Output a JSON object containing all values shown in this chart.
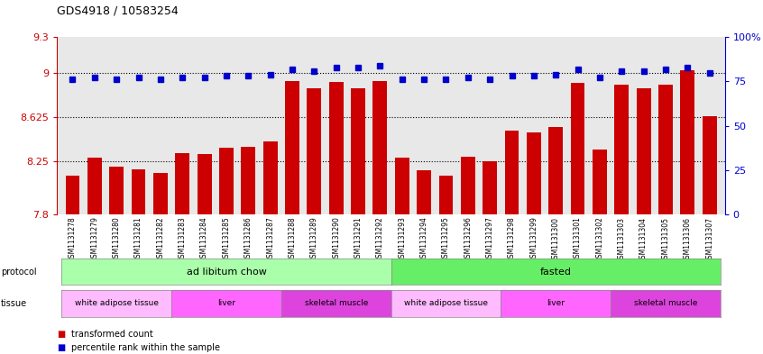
{
  "title": "GDS4918 / 10583254",
  "samples": [
    "GSM1131278",
    "GSM1131279",
    "GSM1131280",
    "GSM1131281",
    "GSM1131282",
    "GSM1131283",
    "GSM1131284",
    "GSM1131285",
    "GSM1131286",
    "GSM1131287",
    "GSM1131288",
    "GSM1131289",
    "GSM1131290",
    "GSM1131291",
    "GSM1131292",
    "GSM1131293",
    "GSM1131294",
    "GSM1131295",
    "GSM1131296",
    "GSM1131297",
    "GSM1131298",
    "GSM1131299",
    "GSM1131300",
    "GSM1131301",
    "GSM1131302",
    "GSM1131303",
    "GSM1131304",
    "GSM1131305",
    "GSM1131306",
    "GSM1131307"
  ],
  "bar_values": [
    8.13,
    8.28,
    8.2,
    8.18,
    8.15,
    8.32,
    8.31,
    8.36,
    8.37,
    8.42,
    8.93,
    8.87,
    8.92,
    8.87,
    8.93,
    8.28,
    8.17,
    8.13,
    8.29,
    8.25,
    8.51,
    8.49,
    8.54,
    8.91,
    8.35,
    8.9,
    8.87,
    8.9,
    9.02,
    8.63
  ],
  "percentile_values": [
    76,
    77,
    76,
    77,
    76,
    77,
    77,
    78,
    78,
    79,
    82,
    81,
    83,
    83,
    84,
    76,
    76,
    76,
    77,
    76,
    78,
    78,
    79,
    82,
    77,
    81,
    81,
    82,
    83,
    80
  ],
  "bar_color": "#cc0000",
  "dot_color": "#0000cc",
  "plot_bg_color": "#e8e8e8",
  "ylim_left": [
    7.8,
    9.3
  ],
  "ylim_right": [
    0,
    100
  ],
  "yticks_left": [
    7.8,
    8.25,
    8.625,
    9.0,
    9.3
  ],
  "ytick_labels_left": [
    "7.8",
    "8.25",
    "8.625",
    "9",
    "9.3"
  ],
  "yticks_right": [
    0,
    25,
    50,
    75,
    100
  ],
  "ytick_labels_right": [
    "0",
    "25",
    "50",
    "75",
    "100%"
  ],
  "hlines": [
    9.0,
    8.625,
    8.25
  ],
  "protocol_groups": [
    {
      "label": "ad libitum chow",
      "start": 0,
      "end": 14,
      "color": "#aaffaa"
    },
    {
      "label": "fasted",
      "start": 15,
      "end": 29,
      "color": "#66ee66"
    }
  ],
  "tissue_groups": [
    {
      "label": "white adipose tissue",
      "start": 0,
      "end": 4,
      "color": "#ffbbff"
    },
    {
      "label": "liver",
      "start": 5,
      "end": 9,
      "color": "#ff66ff"
    },
    {
      "label": "skeletal muscle",
      "start": 10,
      "end": 14,
      "color": "#dd44dd"
    },
    {
      "label": "white adipose tissue",
      "start": 15,
      "end": 19,
      "color": "#ffbbff"
    },
    {
      "label": "liver",
      "start": 20,
      "end": 24,
      "color": "#ff66ff"
    },
    {
      "label": "skeletal muscle",
      "start": 25,
      "end": 29,
      "color": "#dd44dd"
    }
  ],
  "legend_items": [
    {
      "label": "transformed count",
      "color": "#cc0000"
    },
    {
      "label": "percentile rank within the sample",
      "color": "#0000cc"
    }
  ]
}
